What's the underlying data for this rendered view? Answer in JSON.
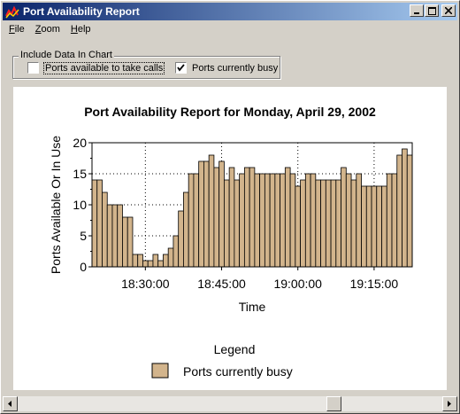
{
  "window": {
    "title": "Port Availability Report"
  },
  "menu": {
    "items": [
      {
        "label": "File",
        "hotkey": "F",
        "rest": "ile"
      },
      {
        "label": "Zoom",
        "hotkey": "Z",
        "rest": "oom"
      },
      {
        "label": "Help",
        "hotkey": "H",
        "rest": "elp"
      }
    ]
  },
  "options": {
    "group_label": "Include Data In Chart",
    "ports_available": {
      "label": "Ports available to take calls",
      "checked": false
    },
    "ports_busy": {
      "label": "Ports currently busy",
      "checked": true
    }
  },
  "colors": {
    "bar_fill": "#d2b48c",
    "titlebar_start": "#0a246a",
    "titlebar_end": "#a6caf0"
  },
  "chart_data": {
    "type": "bar",
    "title": "Port Availability Report for Monday, April 29, 2002",
    "xlabel": "Time",
    "ylabel": "Ports Available Or In Use",
    "ylim": [
      0,
      20
    ],
    "y_ticks": [
      0,
      5,
      10,
      15,
      20
    ],
    "x_tick_labels": [
      "18:30:00",
      "18:45:00",
      "19:00:00",
      "19:15:00"
    ],
    "grid": true,
    "legend_title": "Legend",
    "legend_position": "bottom",
    "series": [
      {
        "name": "Ports currently busy",
        "values": [
          14,
          14,
          12,
          10,
          10,
          10,
          8,
          8,
          2,
          2,
          1,
          1,
          2,
          1,
          2,
          3,
          5,
          9,
          12,
          15,
          15,
          17,
          17,
          18,
          16,
          17,
          14,
          16,
          14,
          15,
          16,
          16,
          15,
          15,
          15,
          15,
          15,
          15,
          16,
          15,
          13,
          14,
          15,
          15,
          14,
          14,
          14,
          14,
          14,
          16,
          15,
          14,
          15,
          13,
          13,
          13,
          13,
          13,
          15,
          15,
          18,
          19,
          18
        ]
      }
    ]
  },
  "scrollbar": {
    "left_arrow": "◀",
    "right_arrow": "▶"
  }
}
